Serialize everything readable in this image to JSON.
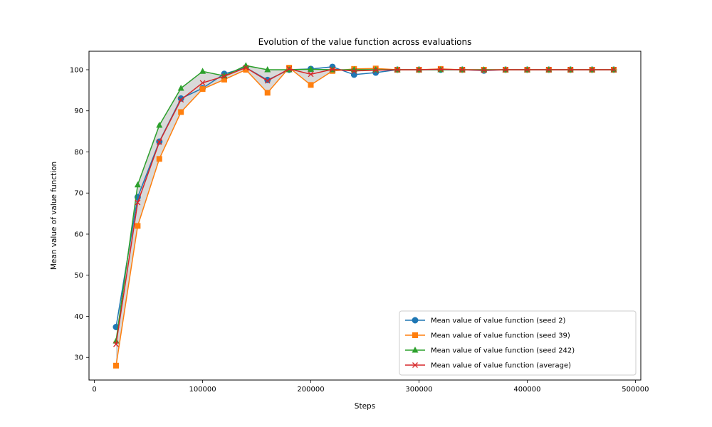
{
  "chart_data": {
    "type": "line",
    "title": "Evolution of the value function across evaluations",
    "xlabel": "Steps",
    "ylabel": "Mean value of value function",
    "xlim": [
      -5000,
      505000
    ],
    "ylim": [
      24.5,
      104.5
    ],
    "xticks": [
      0,
      100000,
      200000,
      300000,
      400000,
      500000
    ],
    "yticks": [
      30,
      40,
      50,
      60,
      70,
      80,
      90,
      100
    ],
    "grid": false,
    "legend_position": "lower-right",
    "x": [
      20000,
      40000,
      60000,
      80000,
      100000,
      120000,
      140000,
      160000,
      180000,
      200000,
      220000,
      240000,
      260000,
      280000,
      300000,
      320000,
      340000,
      360000,
      380000,
      400000,
      420000,
      440000,
      460000,
      480000
    ],
    "fill_between": {
      "lower": "seed 39",
      "upper": "seed 242",
      "color": "#808080",
      "opacity": 0.3
    },
    "series": [
      {
        "name": "Mean value of value function (seed 2)",
        "color": "#1f77b4",
        "marker": "circle",
        "values": [
          37.4,
          69.0,
          82.5,
          93.0,
          95.5,
          99.0,
          100.5,
          97.5,
          100.0,
          100.2,
          100.7,
          98.8,
          99.3,
          100.0,
          100.0,
          100.0,
          100.0,
          99.8,
          100.0,
          100.0,
          100.0,
          100.0,
          100.0,
          100.0
        ]
      },
      {
        "name": "Mean value of value function (seed 39)",
        "color": "#ff7f0e",
        "marker": "square",
        "values": [
          28.0,
          62.0,
          78.3,
          89.7,
          95.3,
          97.6,
          100.0,
          94.4,
          100.5,
          96.3,
          99.7,
          100.2,
          100.3,
          100.0,
          100.0,
          100.2,
          100.0,
          100.0,
          100.0,
          100.0,
          100.0,
          100.0,
          100.0,
          100.0
        ]
      },
      {
        "name": "Mean value of value function (seed 242)",
        "color": "#2ca02c",
        "marker": "triangle",
        "values": [
          34.0,
          72.0,
          86.5,
          95.5,
          99.6,
          98.5,
          101.0,
          100.0,
          100.0,
          100.1,
          100.0,
          100.0,
          100.0,
          100.0,
          100.0,
          100.0,
          100.0,
          100.0,
          100.0,
          100.0,
          100.0,
          100.0,
          100.0,
          100.0
        ]
      },
      {
        "name": "Mean value of value function (average)",
        "color": "#d62728",
        "marker": "x",
        "values": [
          33.2,
          67.7,
          82.4,
          92.7,
          96.8,
          98.4,
          100.5,
          97.3,
          100.2,
          98.9,
          100.1,
          99.7,
          99.9,
          100.0,
          100.0,
          100.1,
          100.0,
          99.9,
          100.0,
          100.0,
          100.0,
          100.0,
          100.0,
          100.0
        ]
      }
    ]
  }
}
